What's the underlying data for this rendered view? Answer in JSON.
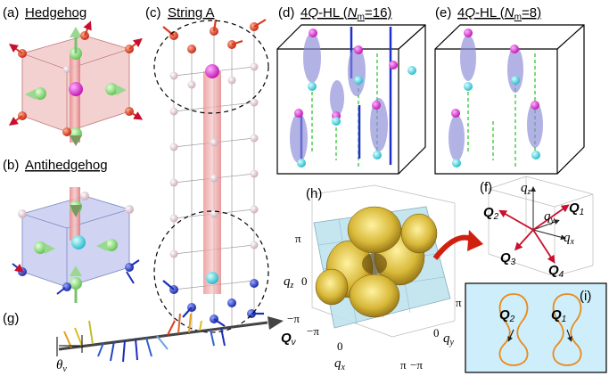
{
  "panels": {
    "a": {
      "tag": "(a)",
      "title": "Hedgehog"
    },
    "b": {
      "tag": "(b)",
      "title": "Antihedgehog"
    },
    "c": {
      "tag": "(c)",
      "title": "String A"
    },
    "d": {
      "tag": "(d)",
      "title_prefix": "4",
      "title_q": "Q",
      "title_mid": "-HL (",
      "title_n": "N",
      "title_sub": "m",
      "title_eq": "=16)"
    },
    "e": {
      "tag": "(e)",
      "title_prefix": "4",
      "title_q": "Q",
      "title_mid": "-HL (",
      "title_n": "N",
      "title_sub": "m",
      "title_eq": "=8)"
    },
    "f": {
      "tag": "(f)",
      "q1": "Q",
      "q1_sub": "1",
      "q2": "Q",
      "q2_sub": "2",
      "q3": "Q",
      "q3_sub": "3",
      "q4": "Q",
      "q4_sub": "4",
      "qx": "q",
      "qx_sub": "x",
      "qy": "q",
      "qy_sub": "y",
      "qz": "q",
      "qz_sub": "z"
    },
    "g": {
      "tag": "(g)",
      "theta": "θ",
      "theta_sub": "ν",
      "qv": "Q",
      "qv_sub": "ν"
    },
    "h": {
      "tag": "(h)",
      "pi": "π",
      "zero": "0",
      "neg_pi": "−π",
      "qz": "q",
      "qz_sub": "z",
      "qx": "q",
      "qx_sub": "x",
      "qy": "q",
      "qy_sub": "y"
    },
    "i": {
      "tag": "(i)",
      "q1": "Q",
      "q1_sub": "1",
      "q2": "Q",
      "q2_sub": "2"
    }
  },
  "colors": {
    "red_arrow": "#d83a1e",
    "blue_arrow": "#1b2fb8",
    "pink_box": "#f3c9c9",
    "blue_box": "#c8cdf0",
    "surface": "#d8b93a",
    "plane": "#bfe3ee",
    "magenta": "#e030d0",
    "cyan": "#30d8e0",
    "green": "#49c23a",
    "orange": "#e88a1a"
  }
}
